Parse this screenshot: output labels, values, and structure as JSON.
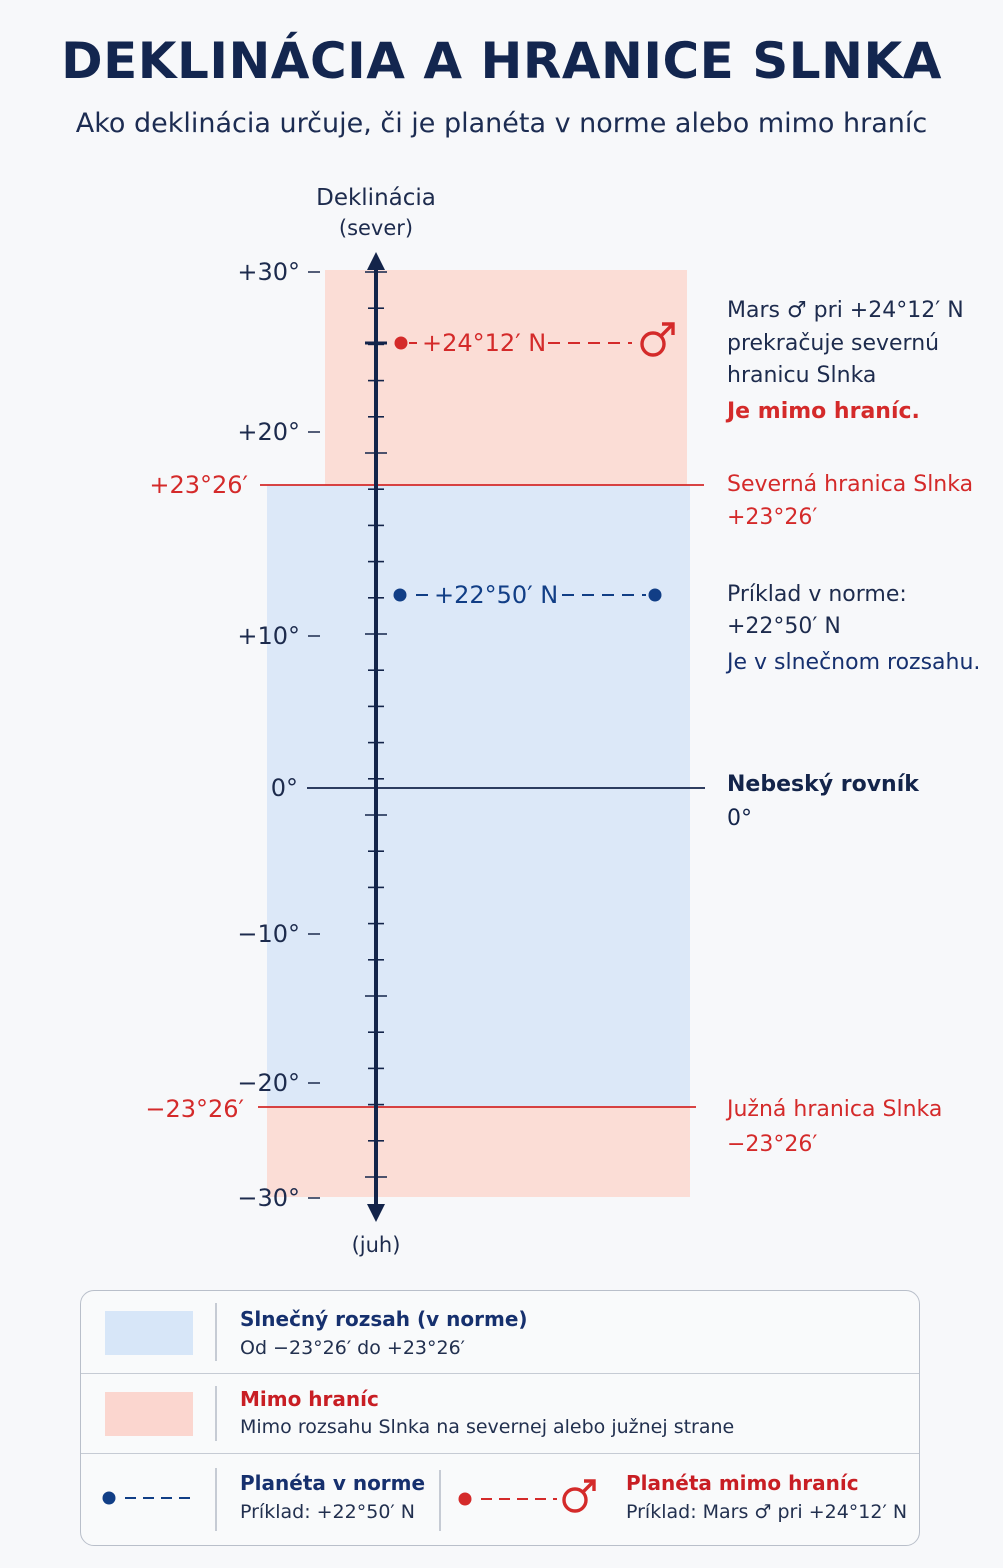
{
  "title": "DEKLINÁCIA A HRANICE SLNKA",
  "subtitle": "Ako deklinácia určuje, či je planéta v norme alebo mimo hraníc",
  "axis": {
    "top_label_line1": "Deklinácia",
    "top_label_line2": "(sever)",
    "bottom_label": "(juh)",
    "ticks": [
      "+30°",
      "+20°",
      "+10°",
      "0°",
      "−10°",
      "−20°",
      "−30°"
    ],
    "range": [
      -30,
      30
    ]
  },
  "bounds": {
    "north_label": "+23°26′",
    "south_label": "−23°26′",
    "north_value": 23.433,
    "south_value": -23.433
  },
  "markers": {
    "mars_label": "+24°12′ N",
    "mars_symbol": "♂",
    "mars_value": 24.2,
    "normal_label": "+22°50′ N",
    "normal_value": 22.833
  },
  "annotations": {
    "mars_line1": "Mars ♂ pri +24°12′ N",
    "mars_line2": "prekračuje severnú",
    "mars_line3": "hranicu Slnka",
    "mars_verdict": "Je mimo hraníc.",
    "north_line1": "Severná hranica Slnka",
    "north_line2": "+23°26′",
    "normal_line1": "Príklad v norme:",
    "normal_line2": "+22°50′ N",
    "normal_verdict": "Je v slnečnom rozsahu.",
    "equator_line1": "Nebeský rovník",
    "equator_line2": "0°",
    "south_line1": "Južná hranica Slnka",
    "south_line2": "−23°26′"
  },
  "legend": {
    "in_range_title": "Slnečný rozsah (v norme)",
    "in_range_desc": "Od  −23°26′  do  +23°26′",
    "out_title": "Mimo hraníc",
    "out_desc": "Mimo rozsahu Slnka na severnej alebo južnej strane",
    "planet_in_title": "Planéta v norme",
    "planet_in_desc": "Príklad:  +22°50′ N",
    "planet_out_title": "Planéta mimo hraníc",
    "planet_out_desc": "Príklad: Mars ♂ pri +24°12′ N"
  },
  "colors": {
    "navy": "#13244a",
    "red": "#d42a2a",
    "in_range_fill": "#dce8f8",
    "out_fill": "#fbd9d2",
    "blue_dot": "#113e86"
  }
}
